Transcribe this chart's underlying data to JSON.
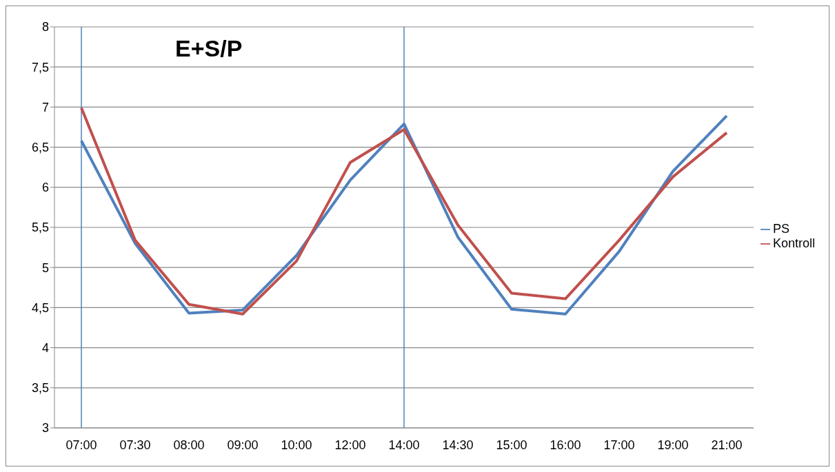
{
  "chart_data": {
    "type": "line",
    "title": "E+S/P",
    "categories": [
      "07:00",
      "07:30",
      "08:00",
      "09:00",
      "10:00",
      "12:00",
      "14:00",
      "14:30",
      "15:00",
      "16:00",
      "17:00",
      "19:00",
      "21:00"
    ],
    "series": [
      {
        "name": "PS",
        "color": "#4f81bd",
        "values": [
          6.58,
          5.3,
          4.43,
          4.47,
          5.15,
          6.09,
          6.79,
          5.38,
          4.48,
          4.42,
          5.2,
          6.2,
          6.89
        ]
      },
      {
        "name": "Kontroll",
        "color": "#c0504d",
        "values": [
          6.99,
          5.34,
          4.54,
          4.42,
          5.08,
          6.31,
          6.72,
          5.53,
          4.68,
          4.61,
          5.34,
          6.13,
          6.68
        ]
      }
    ],
    "ylim": [
      3,
      8
    ],
    "yticks": [
      3,
      {
        "value": 3.5,
        "label": "3,5"
      },
      4,
      {
        "value": 4.5,
        "label": "4,5"
      },
      5,
      {
        "value": 5.5,
        "label": "5,5"
      },
      6,
      {
        "value": 6.5,
        "label": "6,5"
      },
      7,
      {
        "value": 7.5,
        "label": "7,5"
      },
      8
    ],
    "ref_lines": [
      {
        "axis": "x",
        "value": "07:00",
        "color": "#4f81bd"
      },
      {
        "axis": "x",
        "value": "14:00",
        "color": "#4f81bd"
      }
    ],
    "grid": "y",
    "legend": "right",
    "marker": "none",
    "line_style": "solid"
  }
}
